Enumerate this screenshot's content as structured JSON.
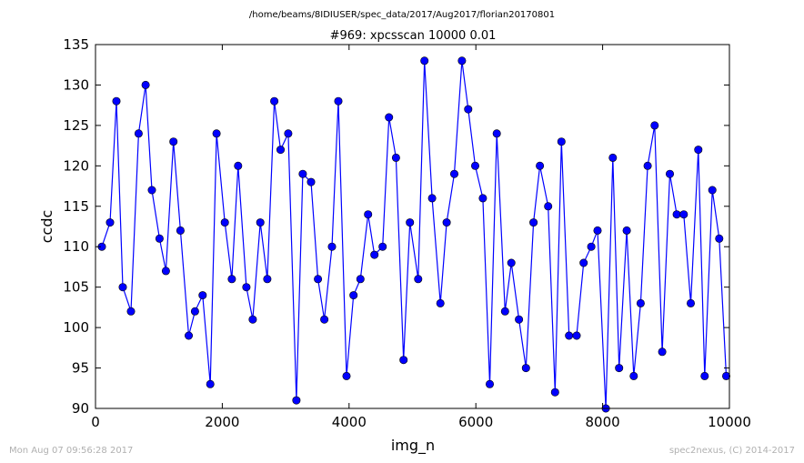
{
  "suptitle": "/home/beams/8IDIUSER/spec_data/2017/Aug2017/florian20170801",
  "footer": {
    "timestamp": "Mon Aug 07 09:56:28 2017",
    "credit": "spec2nexus, (C) 2014-2017"
  },
  "colors": {
    "series": "#0000ff"
  },
  "chart_data": {
    "type": "line",
    "title": "#969: xpcsscan 10000 0.01",
    "xlabel": "img_n",
    "ylabel": "ccdc",
    "xlim": [
      0,
      10000
    ],
    "ylim": [
      90,
      135
    ],
    "xticks": [
      0,
      2000,
      4000,
      6000,
      8000,
      10000
    ],
    "yticks": [
      90,
      95,
      100,
      105,
      110,
      115,
      120,
      125,
      130,
      135
    ],
    "grid": false,
    "legend": "none",
    "series": [
      {
        "marker": "circle",
        "x": [
          100,
          230,
          330,
          430,
          560,
          680,
          790,
          890,
          1010,
          1110,
          1230,
          1340,
          1470,
          1570,
          1690,
          1810,
          1910,
          2040,
          2150,
          2250,
          2380,
          2480,
          2600,
          2710,
          2820,
          2920,
          3040,
          3170,
          3270,
          3400,
          3510,
          3610,
          3730,
          3830,
          3960,
          4070,
          4180,
          4300,
          4400,
          4530,
          4630,
          4740,
          4860,
          4960,
          5090,
          5190,
          5310,
          5440,
          5540,
          5660,
          5780,
          5880,
          5990,
          6110,
          6220,
          6330,
          6460,
          6560,
          6680,
          6790,
          6910,
          7010,
          7140,
          7250,
          7350,
          7470,
          7590,
          7700,
          7820,
          7920,
          8050,
          8160,
          8260,
          8380,
          8490,
          8600,
          8710,
          8820,
          8940,
          9060,
          9170,
          9280,
          9390,
          9510,
          9610,
          9730,
          9840,
          9950
        ],
        "y": [
          110,
          113,
          128,
          105,
          102,
          124,
          130,
          117,
          111,
          107,
          123,
          112,
          99,
          102,
          104,
          93,
          124,
          113,
          106,
          120,
          105,
          101,
          113,
          106,
          128,
          122,
          124,
          91,
          119,
          118,
          106,
          101,
          110,
          128,
          94,
          104,
          106,
          114,
          109,
          110,
          126,
          121,
          96,
          113,
          106,
          133,
          116,
          103,
          113,
          119,
          133,
          127,
          120,
          116,
          93,
          124,
          102,
          108,
          101,
          95,
          113,
          120,
          115,
          92,
          123,
          99,
          99,
          108,
          110,
          112,
          90,
          121,
          95,
          112,
          94,
          103,
          120,
          125,
          97,
          119,
          114,
          114,
          103,
          122,
          94,
          117,
          111,
          94
        ]
      }
    ]
  }
}
